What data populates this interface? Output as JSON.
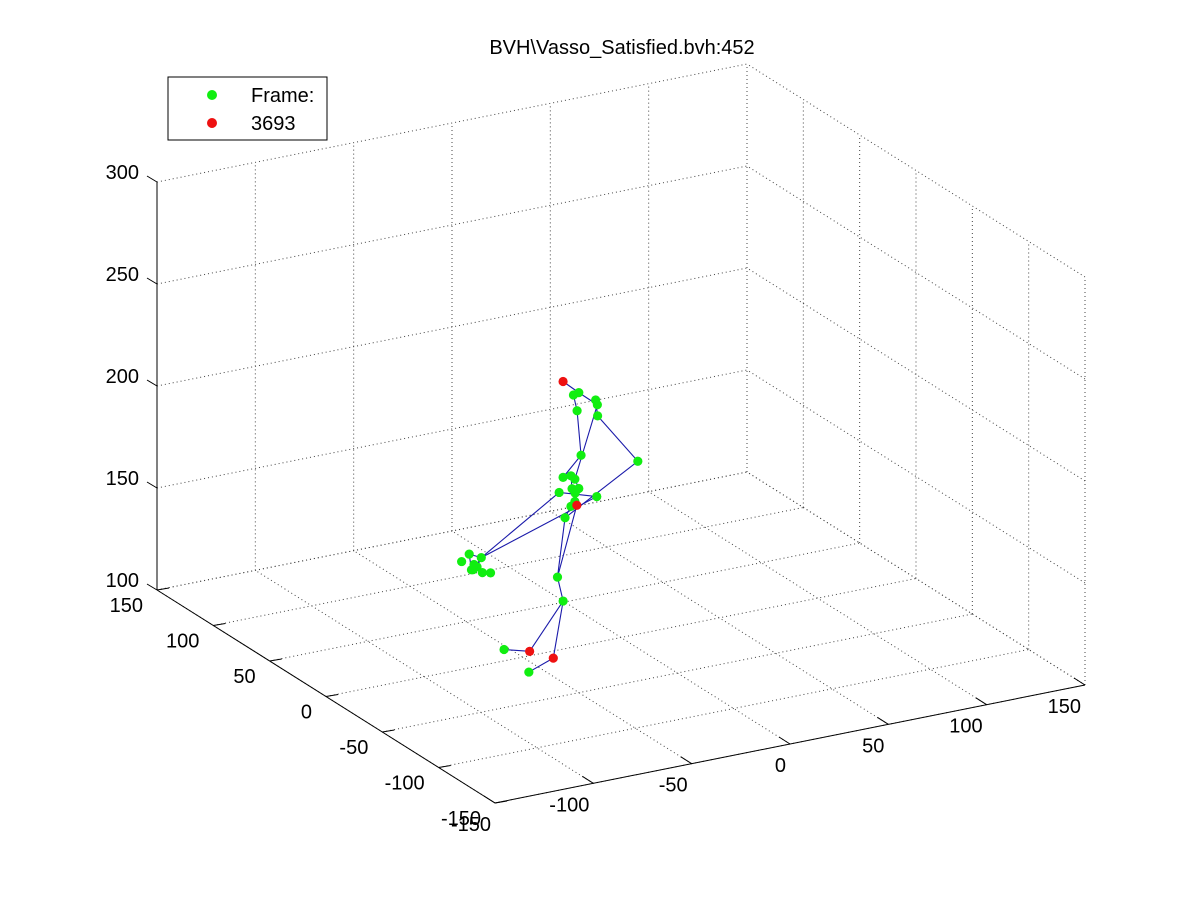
{
  "chart_data": {
    "type": "scatter",
    "title": "BVH\\Vasso_Satisfied.bvh:452",
    "xlabel": "",
    "ylabel": "",
    "zlabel": "",
    "xlim": [
      -150,
      150
    ],
    "ylim": [
      -150,
      150
    ],
    "zlim": [
      100,
      300
    ],
    "grid": true,
    "legend_position": "top-left",
    "x_ticks": [
      "-150",
      "-100",
      "-50",
      "0",
      "50",
      "100",
      "150"
    ],
    "y_ticks": [
      "-150",
      "-100",
      "-50",
      "0",
      "50",
      "100",
      "150"
    ],
    "z_ticks": [
      "100",
      "150",
      "200",
      "250",
      "300"
    ],
    "legend": [
      {
        "label": "Frame:",
        "color": "#00ee00"
      },
      {
        "label": "3693",
        "color": "#ee0000"
      }
    ],
    "colors": {
      "joint": "#11ee11",
      "end_effector": "#ee1111",
      "bone": "#1a1aaa",
      "grid": "#444444"
    },
    "series": [
      {
        "name": "Frame:",
        "color": "#11ee11",
        "points": [
          [
            -10,
            20,
            215
          ],
          [
            -11,
            23,
            213
          ],
          [
            -4,
            14,
            210
          ],
          [
            -8,
            25,
            204
          ],
          [
            2,
            26,
            207
          ],
          [
            3,
            26,
            199
          ],
          [
            -10,
            18,
            185
          ],
          [
            -18,
            20,
            175
          ],
          [
            12,
            6,
            182
          ],
          [
            -12,
            20,
            173
          ],
          [
            -14,
            20,
            175
          ],
          [
            -10,
            20,
            168
          ],
          [
            -14,
            19,
            169
          ],
          [
            -13,
            18,
            167
          ],
          [
            -20,
            20,
            168
          ],
          [
            -12,
            20,
            162
          ],
          [
            -14,
            20,
            160
          ],
          [
            2,
            25,
            160
          ],
          [
            -17,
            20,
            155
          ],
          [
            -55,
            28,
            140
          ],
          [
            -60,
            30,
            142
          ],
          [
            -65,
            28,
            140
          ],
          [
            -60,
            28,
            135
          ],
          [
            -58,
            30,
            134
          ],
          [
            -55,
            27,
            133
          ],
          [
            -52,
            25,
            133
          ],
          [
            -56,
            30,
            135
          ],
          [
            -57,
            31,
            136
          ],
          [
            -30,
            4,
            134
          ],
          [
            -30,
            -1,
            124
          ],
          [
            -40,
            34,
            90
          ],
          [
            -48,
            -2,
            93
          ]
        ]
      },
      {
        "name": "3693",
        "color": "#ee1111",
        "points": [
          [
            -18,
            20,
            222
          ],
          [
            -11,
            20,
            160
          ],
          [
            -35,
            20,
            93
          ],
          [
            -35,
            -1,
            97
          ]
        ]
      }
    ]
  }
}
